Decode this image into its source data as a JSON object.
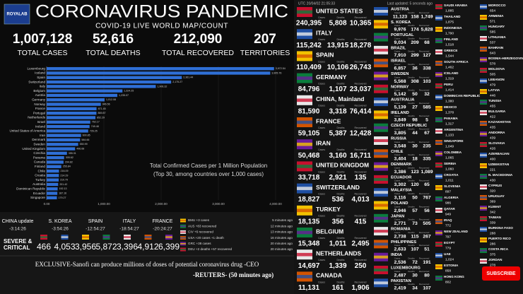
{
  "header": {
    "logo": "ROYALAB",
    "title": "CORONAVIRUS PANDEMIC",
    "subtitle": "COVID-19 LIVE WORLD MAP/COUNT"
  },
  "totals": [
    {
      "value": "1,007,128",
      "label": "TOTAL CASES"
    },
    {
      "value": "52,616",
      "label": "TOTAL DEATHS"
    },
    {
      "value": "212,090",
      "label": "TOTAL RECOVERED"
    },
    {
      "value": "207",
      "label": "TERRITORIES"
    }
  ],
  "chart_data": {
    "type": "bar",
    "orientation": "horizontal",
    "title": "Total Confirmed Cases per 1 Million Population",
    "subtitle": "(Top 30, among countries over 1,000 cases)",
    "categories": [
      "Luxembourg",
      "Iceland",
      "Spain",
      "Switzerland",
      "Italy",
      "Belgium",
      "Austria",
      "Germany",
      "Norway",
      "France",
      "Portugal",
      "Netherlands",
      "Israel",
      "Ireland",
      "United States of America",
      "Iran",
      "Denmark",
      "Sweden",
      "United Kingdom",
      "Czechia",
      "Panama",
      "Canada",
      "Finland",
      "Chile",
      "Croatia",
      "Turkey",
      "Australia",
      "Dominican Republic",
      "Ecuador",
      "Singapore"
    ],
    "values": [
      3972.54,
      3905.76,
      2361.44,
      2175.27,
      1906.32,
      1324.25,
      1235.07,
      1012.08,
      946.56,
      871.45,
      869.87,
      852.29,
      762.17,
      749.48,
      726.25,
      600.85,
      584.66,
      550.99,
      496.68,
      355.31,
      305.62,
      294.82,
      255.84,
      216.09,
      214.29,
      210.79,
      201.42,
      192.13,
      187.16,
      179.27
    ],
    "value_labels": [
      "3,972.54",
      "3,905.76",
      "2,361.44",
      "2,175.27",
      "1,906.32",
      "1,324.25",
      "1,235.07",
      "1,012.08",
      "946.56",
      "871.45",
      "869.87",
      "852.29",
      "762.17",
      "749.48",
      "726.25",
      "600.85",
      "584.66",
      "550.99",
      "496.68",
      "355.31",
      "305.62",
      "294.82",
      "255.84",
      "216.09",
      "214.29",
      "210.79",
      "201.42",
      "192.13",
      "187.16",
      "179.27"
    ],
    "color": "#2f6fd6",
    "xlim": [
      0,
      4000
    ],
    "xticks": [
      {
        "value": 0,
        "label": "0.00"
      },
      {
        "value": 1000,
        "label": "1,000.00"
      },
      {
        "value": 2000,
        "label": "2,000.00"
      },
      {
        "value": 3000,
        "label": "3,000.00"
      },
      {
        "value": 4000,
        "label": "4,000.00"
      }
    ]
  },
  "updates": [
    {
      "country": "CHINA update",
      "time": "-3:14:26"
    },
    {
      "country": "S. KOREA",
      "time": "-3:54:26"
    },
    {
      "country": "SPAIN",
      "time": "-12:54:27"
    },
    {
      "country": "ITALY",
      "time": "-18:54:27"
    },
    {
      "country": "FRANCE",
      "time": "-20:24:27"
    }
  ],
  "severe": {
    "label_lines": [
      "SEVERE &",
      "CRITICAL"
    ],
    "values": [
      "466",
      "4,053",
      "3,956",
      "5,872",
      "3,396",
      "4,912",
      "6,399"
    ]
  },
  "news": [
    {
      "text": "BMU +3 cases",
      "time": "5 minutes ago"
    },
    {
      "text": "AUS +83 recovered",
      "time": "12 minutes ago"
    },
    {
      "text": "CIV +6 recovered",
      "time": "13 minutes ago"
    },
    {
      "text": "USA +20 cases +1 death",
      "time": "16 minutes ago"
    },
    {
      "text": "GRC +38 cases",
      "time": "20 minutes ago"
    },
    {
      "text": "DEU +2 deaths +57 recovered",
      "time": "20 minutes ago"
    }
  ],
  "ticker": {
    "headline": "EXCLUSIVE-Sanofi can produce millions of doses of potential coronavirus drug -CEO",
    "source": "-REUTERS- (50 minutes ago)"
  },
  "list": {
    "updated": "UTC 20/04/02 21:05:33",
    "last_updated": "Last updated: 5 seconds ago",
    "column_labels": [
      "Cases",
      "Deaths",
      "Recovered"
    ],
    "main": [
      {
        "name": "UNITED STATES",
        "cases": "240,395",
        "deaths": "5,808",
        "recovered": "10,365"
      },
      {
        "name": "ITALY",
        "cases": "115,242",
        "deaths": "13,915",
        "recovered": "18,278"
      },
      {
        "name": "SPAIN",
        "cases": "110,409",
        "deaths": "10,106",
        "recovered": "26,743"
      },
      {
        "name": "GERMANY",
        "cases": "84,796",
        "deaths": "1,107",
        "recovered": "23,037"
      },
      {
        "name": "CHINA, Mainland",
        "cases": "81,590",
        "deaths": "3,318",
        "recovered": "76,414"
      },
      {
        "name": "FRANCE",
        "cases": "59,105",
        "deaths": "5,387",
        "recovered": "12,428"
      },
      {
        "name": "IRAN",
        "cases": "50,468",
        "deaths": "3,160",
        "recovered": "16,711"
      },
      {
        "name": "UNITED KINGDOM",
        "cases": "33,718",
        "deaths": "2,921",
        "recovered": "135"
      },
      {
        "name": "SWITZERLAND",
        "cases": "18,827",
        "deaths": "536",
        "recovered": "4,013"
      },
      {
        "name": "TURKEY",
        "cases": "18,135",
        "deaths": "356",
        "recovered": "415"
      },
      {
        "name": "BELGIUM",
        "cases": "15,348",
        "deaths": "1,011",
        "recovered": "2,495"
      },
      {
        "name": "NETHERLANDS",
        "cases": "14,697",
        "deaths": "1,339",
        "recovered": "250"
      },
      {
        "name": "CANADA",
        "cases": "11,131",
        "deaths": "161",
        "recovered": "1,906"
      }
    ],
    "secondary": [
      {
        "name": "AUSTRIA",
        "cases": "11,123",
        "deaths": "158",
        "recovered": "1,749"
      },
      {
        "name": "S. KOREA",
        "cases": "9,976",
        "deaths": "174",
        "recovered": "5,828"
      },
      {
        "name": "PORTUGAL",
        "cases": "9,034",
        "deaths": "209",
        "recovered": "68"
      },
      {
        "name": "BRAZIL",
        "cases": "7,910",
        "deaths": "299",
        "recovered": "127"
      },
      {
        "name": "ISRAEL",
        "cases": "6,857",
        "deaths": "36",
        "recovered": "338"
      },
      {
        "name": "SWEDEN",
        "cases": "5,568",
        "deaths": "308",
        "recovered": "103"
      },
      {
        "name": "NORWAY",
        "cases": "5,142",
        "deaths": "50",
        "recovered": "32"
      },
      {
        "name": "AUSTRALIA",
        "cases": "5,139",
        "deaths": "27",
        "recovered": "585"
      },
      {
        "name": "IRELAND",
        "cases": "3,849",
        "deaths": "98",
        "recovered": "5"
      },
      {
        "name": "CZECH REPUBLIC",
        "cases": "3,805",
        "deaths": "44",
        "recovered": "67"
      },
      {
        "name": "RUSSIA",
        "cases": "3,548",
        "deaths": "30",
        "recovered": "235"
      },
      {
        "name": "CHILE",
        "cases": "3,404",
        "deaths": "18",
        "recovered": "335"
      },
      {
        "name": "DENMARK",
        "cases": "3,386",
        "deaths": "123",
        "recovered": "1,089"
      },
      {
        "name": "ECUADOR",
        "cases": "3,302",
        "deaths": "120",
        "recovered": "65"
      },
      {
        "name": "MALAYSIA",
        "cases": "3,116",
        "deaths": "50",
        "recovered": "767"
      },
      {
        "name": "POLAND",
        "cases": "2,946",
        "deaths": "57",
        "recovered": "56"
      },
      {
        "name": "JAPAN",
        "cases": "2,771",
        "deaths": "73",
        "recovered": "505"
      },
      {
        "name": "ROMANIA",
        "cases": "2,738",
        "deaths": "115",
        "recovered": "267"
      },
      {
        "name": "PHILIPPINES",
        "cases": "2,633",
        "deaths": "107",
        "recovered": "51"
      },
      {
        "name": "INDIA",
        "cases": "2,536",
        "deaths": "72",
        "recovered": "191"
      },
      {
        "name": "LUXEMBOURG",
        "cases": "2,487",
        "deaths": "30",
        "recovered": "80"
      },
      {
        "name": "PAKISTAN",
        "cases": "2,419",
        "deaths": "34",
        "recovered": "107"
      }
    ],
    "minor": [
      {
        "name": "SAUDI ARABIA",
        "cases": "1,885"
      },
      {
        "name": "THAILAND",
        "cases": "1,875"
      },
      {
        "name": "INDONESIA",
        "cases": "1,790"
      },
      {
        "name": "FINLAND",
        "cases": "1,518"
      },
      {
        "name": "GREECE",
        "cases": "1,544"
      },
      {
        "name": "SOUTH AFRICA",
        "cases": "1,462"
      },
      {
        "name": "ICELAND",
        "cases": "1,319"
      },
      {
        "name": "PERU",
        "cases": "1,414"
      },
      {
        "name": "DOMINICAN REPUBLIC",
        "cases": "1,380"
      },
      {
        "name": "MEXICO",
        "cases": "1,378"
      },
      {
        "name": "PANAMA",
        "cases": "1,317"
      },
      {
        "name": "ARGENTINA",
        "cases": "1,133"
      },
      {
        "name": "SINGAPORE",
        "cases": "1,049"
      },
      {
        "name": "COLOMBIA",
        "cases": "1,065"
      },
      {
        "name": "SERBIA",
        "cases": "1,060"
      },
      {
        "name": "CROATIA",
        "cases": "1,011"
      },
      {
        "name": "SLOVENIA",
        "cases": "897"
      },
      {
        "name": "ALGERIA",
        "cases": "986"
      },
      {
        "name": "QATAR",
        "cases": "949"
      },
      {
        "name": "IRAQ",
        "cases": "772"
      },
      {
        "name": "NEW ZEALAND",
        "cases": "797"
      },
      {
        "name": "EGYPT",
        "cases": "779"
      },
      {
        "name": "UAE",
        "cases": "1,024"
      },
      {
        "name": "ESTONIA",
        "cases": "858"
      },
      {
        "name": "HONG KONG",
        "cases": "802"
      }
    ],
    "minor2": [
      {
        "name": "MOROCCO",
        "cases": "654"
      },
      {
        "name": "ARMENIA",
        "cases": "571"
      },
      {
        "name": "HUNGARY",
        "cases": "585"
      },
      {
        "name": "LITHUANIA",
        "cases": "537"
      },
      {
        "name": "BAHRAIN",
        "cases": "643"
      },
      {
        "name": "BOSNIA-HERZEGOVINA",
        "cases": "578"
      },
      {
        "name": "MOLDOVA",
        "cases": "505"
      },
      {
        "name": "LEBANON",
        "cases": "479"
      },
      {
        "name": "LATVIA",
        "cases": "446"
      },
      {
        "name": "TUNISIA",
        "cases": "455"
      },
      {
        "name": "BULGARIA",
        "cases": "422"
      },
      {
        "name": "KAZAKHSTAN",
        "cases": "435"
      },
      {
        "name": "ANDORRA",
        "cases": "439"
      },
      {
        "name": "SLOVAKIA",
        "cases": "426"
      },
      {
        "name": "AZERBAIJAN",
        "cases": "400"
      },
      {
        "name": "UZBEKISTAN",
        "cases": "221"
      },
      {
        "name": "N. MACEDONIA",
        "cases": "430"
      },
      {
        "name": "CYPRUS",
        "cases": "320"
      },
      {
        "name": "URUGUAY",
        "cases": "369"
      },
      {
        "name": "KUWAIT",
        "cases": "342"
      },
      {
        "name": "TAIWAN",
        "cases": "339"
      },
      {
        "name": "BURKINA FASO",
        "cases": "288"
      },
      {
        "name": "PUERTO RICO",
        "cases": "286"
      },
      {
        "name": "COSTA RICA",
        "cases": "375"
      },
      {
        "name": "JORDAN",
        "cases": "278"
      }
    ]
  },
  "subscribe": "SUBSCRIBE"
}
